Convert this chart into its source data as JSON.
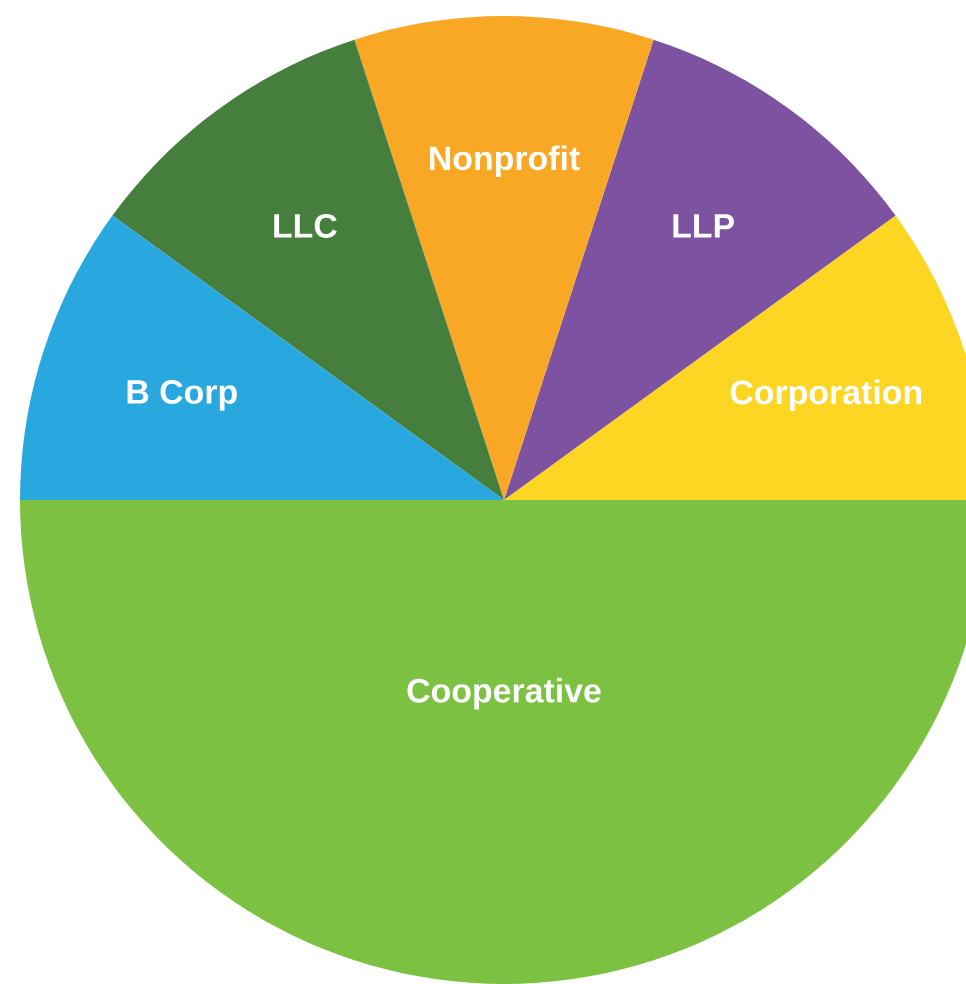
{
  "chart_data": {
    "type": "pie",
    "categories": [
      "Corporation",
      "LLP",
      "Nonprofit",
      "LLC",
      "B Corp",
      "Cooperative"
    ],
    "values": [
      10,
      10,
      10,
      10,
      10,
      50
    ],
    "colors": [
      "#fdd523",
      "#7d52a0",
      "#f9a825",
      "#467f3d",
      "#29a8e0",
      "#7dc142"
    ]
  }
}
